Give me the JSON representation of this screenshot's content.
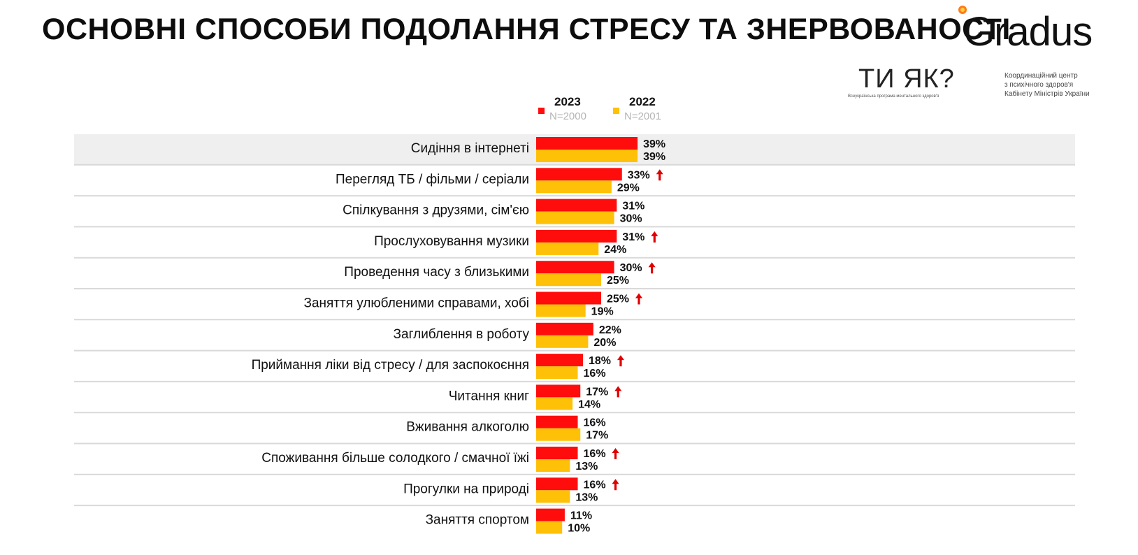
{
  "header": {
    "title": "ОСНОВНІ СПОСОБИ ПОДОЛАННЯ СТРЕСУ ТА ЗНЕРВОВАНОСТІ",
    "brand": "Gradus",
    "partner_logo": "ТИ ЯК?",
    "partner_tagline": "Всеукраїнська програма ментального здоров'я",
    "coordination_lines": [
      "Координаційний центр",
      "з психічного здоров'я",
      "Кабінету Міністрів України"
    ]
  },
  "legend": {
    "series_2023": {
      "year": "2023",
      "n": "N=2000"
    },
    "series_2022": {
      "year": "2022",
      "n": "N=2001"
    }
  },
  "colors": {
    "series_2023": "#ff0d0d",
    "series_2022": "#ffc107",
    "increase_arrow": "#e00000",
    "highlight_row": "#efefef",
    "row_divider": "#d9d9d9",
    "brand_accent": "#ff7a1a"
  },
  "chart_data": {
    "type": "bar",
    "orientation": "horizontal",
    "categories": [
      "Сидіння в інтернеті",
      "Перегляд ТБ / фільми / серіали",
      "Спілкування з друзями, сім'єю",
      "Прослуховування музики",
      "Проведення часу з близькими",
      "Заняття улюбленими справами, хобі",
      "Заглиблення в роботу",
      "Приймання ліки від стресу / для заспокоєння",
      "Читання книг",
      "Вживання алкоголю",
      "Споживання більше солодкого / смачної їжі",
      "Прогулки на природі",
      "Заняття спортом"
    ],
    "series": [
      {
        "name": "2023",
        "values": [
          39,
          33,
          31,
          31,
          30,
          25,
          22,
          18,
          17,
          16,
          16,
          16,
          11
        ]
      },
      {
        "name": "2022",
        "values": [
          39,
          29,
          30,
          24,
          25,
          19,
          20,
          16,
          14,
          17,
          13,
          13,
          10
        ]
      }
    ],
    "value_suffix": "%",
    "increase_flags": [
      false,
      true,
      false,
      true,
      true,
      true,
      false,
      true,
      true,
      false,
      true,
      true,
      false
    ],
    "highlighted_category": "Сидіння в інтернеті",
    "xlim": [
      0,
      100
    ],
    "legend_position": "top",
    "grid": false
  }
}
